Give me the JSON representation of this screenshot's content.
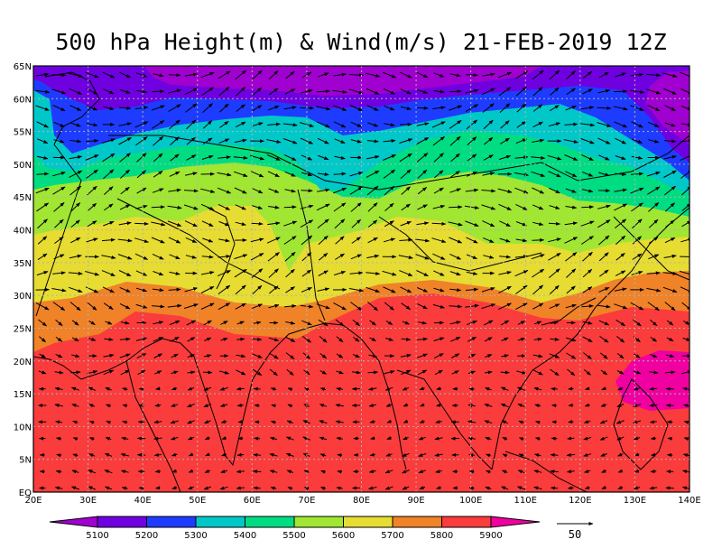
{
  "title": "500 hPa Height(m) & Wind(m/s) 21-FEB-2019 12Z",
  "map": {
    "lon_range": [
      20,
      140
    ],
    "lat_range": [
      0,
      65
    ],
    "x_ticks": [
      "20E",
      "30E",
      "40E",
      "50E",
      "60E",
      "70E",
      "80E",
      "90E",
      "100E",
      "110E",
      "120E",
      "130E",
      "140E"
    ],
    "y_ticks": [
      "EQ",
      "5N",
      "10N",
      "15N",
      "20N",
      "25N",
      "30N",
      "35N",
      "40N",
      "45N",
      "50N",
      "55N",
      "60N",
      "65N"
    ],
    "grid": "dotted, every 10° longitude and 5° latitude"
  },
  "legend": {
    "levels": [
      "5100",
      "5200",
      "5300",
      "5400",
      "5500",
      "5600",
      "5700",
      "5800",
      "5900"
    ],
    "colors": [
      "#a000d0",
      "#6f00e0",
      "#1e3cff",
      "#00c8c8",
      "#00dc82",
      "#a0e632",
      "#e6dc32",
      "#f08228",
      "#fa3c3c",
      "#f000a0"
    ],
    "vector_label": "50"
  }
}
